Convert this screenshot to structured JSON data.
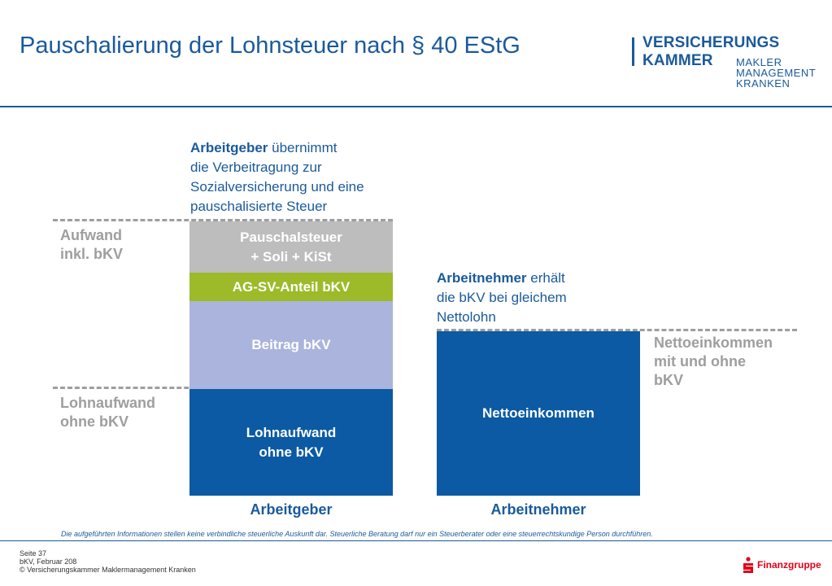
{
  "header": {
    "title": "Pauschalierung der Lohnsteuer nach § 40 EStG",
    "logo": {
      "line1": "VERSICHERUNGS",
      "line2": "KAMMER",
      "sub1": "MAKLER",
      "sub2": "MANAGEMENT",
      "sub3": "KRANKEN"
    }
  },
  "employer_note": {
    "bold": "Arbeitgeber",
    "rest1": " übernimmt",
    "line2": "die Verbeitragung zur",
    "line3": "Sozialversicherung und eine",
    "line4": "pauschalisierte Steuer"
  },
  "employee_note": {
    "bold": "Arbeitnehmer",
    "rest1": " erhält",
    "line2": "die bKV bei gleichem",
    "line3": "Nettolohn"
  },
  "left_labels": {
    "top_line1": "Aufwand",
    "top_line2": "inkl. bKV",
    "bottom_line1": "Lohnaufwand",
    "bottom_line2": "ohne bKV"
  },
  "right_label": {
    "line1": "Nettoeinkommen",
    "line2": "mit und ohne",
    "line3": "bKV"
  },
  "employer_bar": {
    "tax_line1": "Pauschalsteuer",
    "tax_line2": "+ Soli + KiSt",
    "ag_sv": "AG-SV-Anteil bKV",
    "beitrag": "Beitrag bKV",
    "lohn_line1": "Lohnaufwand",
    "lohn_line2": "ohne bKV"
  },
  "employee_bar": {
    "netto": "Nettoeinkommen"
  },
  "axis": {
    "employer": "Arbeitgeber",
    "employee": "Arbeitnehmer"
  },
  "footer": {
    "disclaimer": "Die aufgeführten Informationen stellen keine verbindliche steuerliche Auskunft dar. Steuerliche Beratung darf nur ein Steuerberater oder eine steuerrechtskundige Person durchführen.",
    "page": "Seite 37",
    "date": "bKV, Februar 208",
    "copyright": "© Versicherungskammer Maklermanagement Kranken",
    "brand": "Finanzgruppe"
  },
  "colors": {
    "primary_blue": "#1a5a9c",
    "bar_blue": "#0b5aa3",
    "light_blue": "#aab4dc",
    "green": "#9dba29",
    "grey": "#bdbdbd",
    "dash_grey": "#9e9e9e",
    "sparkasse_red": "#e2001a"
  }
}
